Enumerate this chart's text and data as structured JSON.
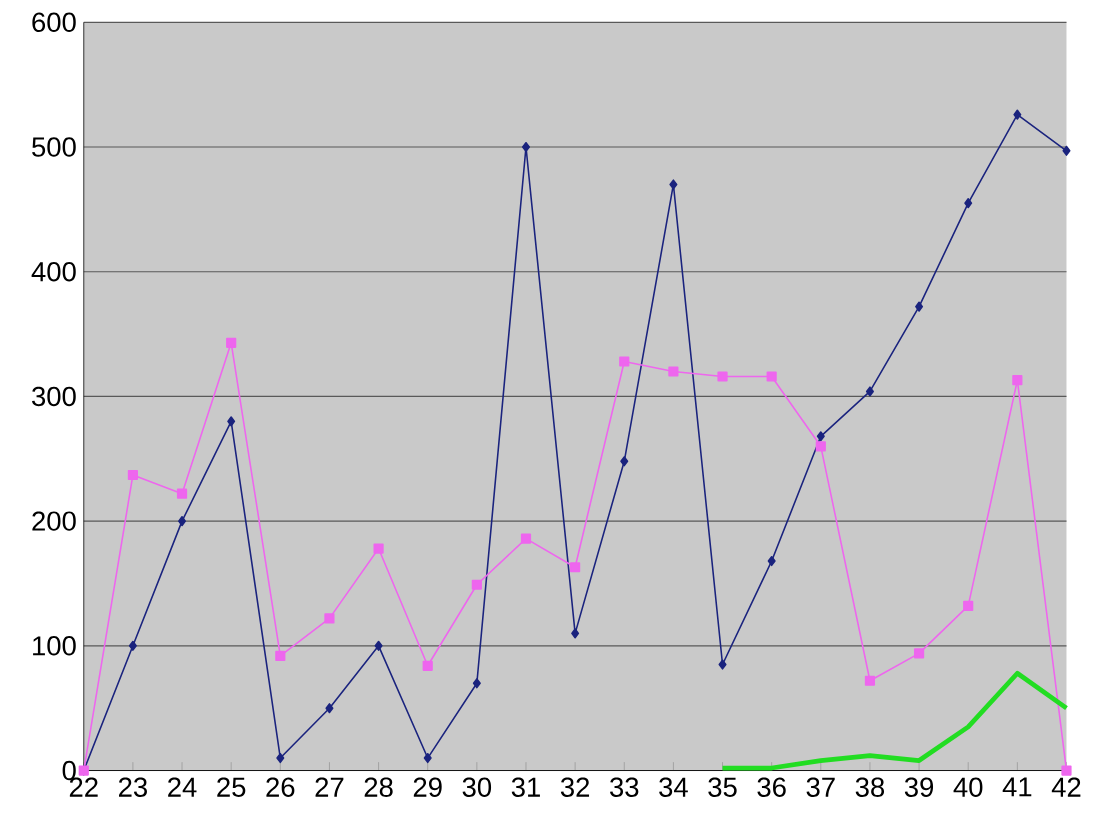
{
  "chart_data": {
    "type": "line",
    "categories": [
      "22",
      "23",
      "24",
      "25",
      "26",
      "27",
      "28",
      "29",
      "30",
      "31",
      "32",
      "33",
      "34",
      "35",
      "36",
      "37",
      "38",
      "39",
      "40",
      "41",
      "42"
    ],
    "series": [
      {
        "color": "#1a237e",
        "marker": "diamond",
        "values": [
          0,
          100,
          200,
          280,
          10,
          50,
          100,
          10,
          70,
          500,
          110,
          248,
          470,
          85,
          168,
          268,
          304,
          372,
          455,
          526,
          497
        ]
      },
      {
        "color": "#ee66ee",
        "marker": "square",
        "values": [
          0,
          237,
          222,
          343,
          92,
          122,
          178,
          84,
          149,
          186,
          163,
          328,
          320,
          316,
          316,
          260,
          72,
          94,
          132,
          313,
          0
        ]
      },
      {
        "color": "#22dd22",
        "marker": "none",
        "values": [
          null,
          null,
          null,
          null,
          null,
          null,
          null,
          null,
          null,
          null,
          null,
          null,
          null,
          2,
          2,
          8,
          12,
          8,
          35,
          78,
          50
        ]
      }
    ],
    "ylim": [
      0,
      600
    ],
    "yticks": [
      0,
      100,
      200,
      300,
      400,
      500,
      600
    ],
    "grid": "y"
  }
}
